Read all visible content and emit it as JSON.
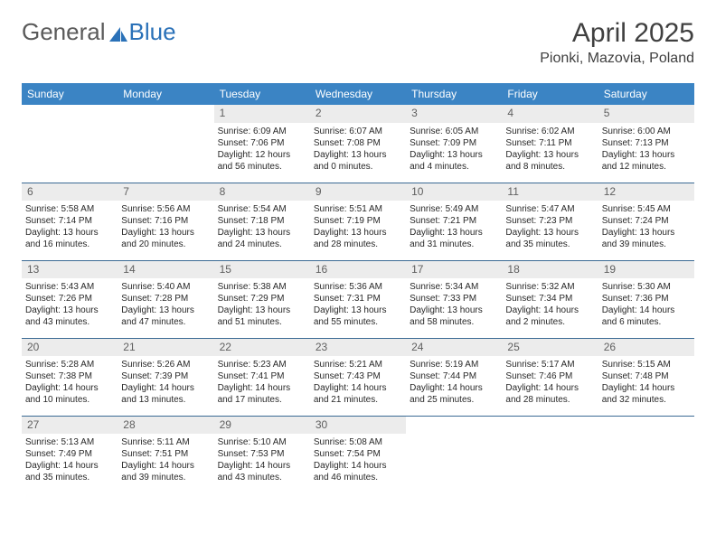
{
  "brand": {
    "part1": "General",
    "part2": "Blue"
  },
  "title": "April 2025",
  "location": "Pionki, Mazovia, Poland",
  "colors": {
    "header_bg": "#3b84c4",
    "header_text": "#ffffff",
    "daynum_bg": "#ececec",
    "daynum_text": "#606060",
    "border": "#3b6a94",
    "body_text": "#282828",
    "logo_gray": "#5a5a5a",
    "logo_blue": "#2a71b8"
  },
  "weekdays": [
    "Sunday",
    "Monday",
    "Tuesday",
    "Wednesday",
    "Thursday",
    "Friday",
    "Saturday"
  ],
  "weeks": [
    [
      null,
      null,
      {
        "d": "1",
        "r": "6:09 AM",
        "s": "7:06 PM",
        "l": "12 hours and 56 minutes."
      },
      {
        "d": "2",
        "r": "6:07 AM",
        "s": "7:08 PM",
        "l": "13 hours and 0 minutes."
      },
      {
        "d": "3",
        "r": "6:05 AM",
        "s": "7:09 PM",
        "l": "13 hours and 4 minutes."
      },
      {
        "d": "4",
        "r": "6:02 AM",
        "s": "7:11 PM",
        "l": "13 hours and 8 minutes."
      },
      {
        "d": "5",
        "r": "6:00 AM",
        "s": "7:13 PM",
        "l": "13 hours and 12 minutes."
      }
    ],
    [
      {
        "d": "6",
        "r": "5:58 AM",
        "s": "7:14 PM",
        "l": "13 hours and 16 minutes."
      },
      {
        "d": "7",
        "r": "5:56 AM",
        "s": "7:16 PM",
        "l": "13 hours and 20 minutes."
      },
      {
        "d": "8",
        "r": "5:54 AM",
        "s": "7:18 PM",
        "l": "13 hours and 24 minutes."
      },
      {
        "d": "9",
        "r": "5:51 AM",
        "s": "7:19 PM",
        "l": "13 hours and 28 minutes."
      },
      {
        "d": "10",
        "r": "5:49 AM",
        "s": "7:21 PM",
        "l": "13 hours and 31 minutes."
      },
      {
        "d": "11",
        "r": "5:47 AM",
        "s": "7:23 PM",
        "l": "13 hours and 35 minutes."
      },
      {
        "d": "12",
        "r": "5:45 AM",
        "s": "7:24 PM",
        "l": "13 hours and 39 minutes."
      }
    ],
    [
      {
        "d": "13",
        "r": "5:43 AM",
        "s": "7:26 PM",
        "l": "13 hours and 43 minutes."
      },
      {
        "d": "14",
        "r": "5:40 AM",
        "s": "7:28 PM",
        "l": "13 hours and 47 minutes."
      },
      {
        "d": "15",
        "r": "5:38 AM",
        "s": "7:29 PM",
        "l": "13 hours and 51 minutes."
      },
      {
        "d": "16",
        "r": "5:36 AM",
        "s": "7:31 PM",
        "l": "13 hours and 55 minutes."
      },
      {
        "d": "17",
        "r": "5:34 AM",
        "s": "7:33 PM",
        "l": "13 hours and 58 minutes."
      },
      {
        "d": "18",
        "r": "5:32 AM",
        "s": "7:34 PM",
        "l": "14 hours and 2 minutes."
      },
      {
        "d": "19",
        "r": "5:30 AM",
        "s": "7:36 PM",
        "l": "14 hours and 6 minutes."
      }
    ],
    [
      {
        "d": "20",
        "r": "5:28 AM",
        "s": "7:38 PM",
        "l": "14 hours and 10 minutes."
      },
      {
        "d": "21",
        "r": "5:26 AM",
        "s": "7:39 PM",
        "l": "14 hours and 13 minutes."
      },
      {
        "d": "22",
        "r": "5:23 AM",
        "s": "7:41 PM",
        "l": "14 hours and 17 minutes."
      },
      {
        "d": "23",
        "r": "5:21 AM",
        "s": "7:43 PM",
        "l": "14 hours and 21 minutes."
      },
      {
        "d": "24",
        "r": "5:19 AM",
        "s": "7:44 PM",
        "l": "14 hours and 25 minutes."
      },
      {
        "d": "25",
        "r": "5:17 AM",
        "s": "7:46 PM",
        "l": "14 hours and 28 minutes."
      },
      {
        "d": "26",
        "r": "5:15 AM",
        "s": "7:48 PM",
        "l": "14 hours and 32 minutes."
      }
    ],
    [
      {
        "d": "27",
        "r": "5:13 AM",
        "s": "7:49 PM",
        "l": "14 hours and 35 minutes."
      },
      {
        "d": "28",
        "r": "5:11 AM",
        "s": "7:51 PM",
        "l": "14 hours and 39 minutes."
      },
      {
        "d": "29",
        "r": "5:10 AM",
        "s": "7:53 PM",
        "l": "14 hours and 43 minutes."
      },
      {
        "d": "30",
        "r": "5:08 AM",
        "s": "7:54 PM",
        "l": "14 hours and 46 minutes."
      },
      null,
      null,
      null
    ]
  ],
  "labels": {
    "sunrise": "Sunrise:",
    "sunset": "Sunset:",
    "daylight": "Daylight:"
  }
}
